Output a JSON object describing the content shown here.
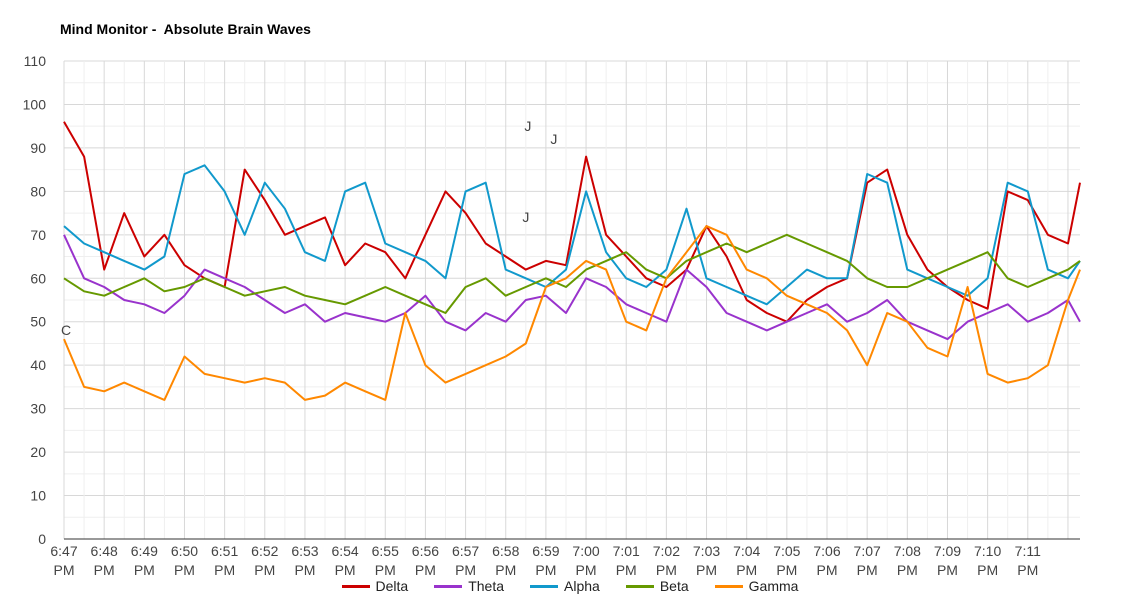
{
  "chart_data": {
    "type": "line",
    "title": "Mind Monitor -  Absolute Brain Waves",
    "ylim": [
      0,
      110
    ],
    "y_ticks": [
      0,
      10,
      20,
      30,
      40,
      50,
      60,
      70,
      80,
      90,
      100,
      110
    ],
    "x_ticks": [
      "6:47 PM",
      "6:48 PM",
      "6:49 PM",
      "6:50 PM",
      "6:51 PM",
      "6:52 PM",
      "6:53 PM",
      "6:54 PM",
      "6:55 PM",
      "6:56 PM",
      "6:57 PM",
      "6:58 PM",
      "6:59 PM",
      "7:00 PM",
      "7:01 PM",
      "7:02 PM",
      "7:03 PM",
      "7:04 PM",
      "7:05 PM",
      "7:06 PM",
      "7:07 PM",
      "7:08 PM",
      "7:09 PM",
      "7:10 PM",
      "7:11 PM"
    ],
    "x_range_minutes": [
      0,
      25.3
    ],
    "grid": true,
    "legend_position": "bottom",
    "series": [
      {
        "name": "Delta",
        "color": "#cc0000",
        "x": [
          0,
          0.5,
          1,
          1.5,
          2,
          2.5,
          3,
          3.5,
          4,
          4.5,
          5,
          5.5,
          6,
          6.5,
          7,
          7.5,
          8,
          8.5,
          9,
          9.5,
          10,
          10.5,
          11,
          11.5,
          12,
          12.5,
          13,
          13.5,
          14,
          14.5,
          15,
          15.5,
          16,
          16.5,
          17,
          17.5,
          18,
          18.5,
          19,
          19.5,
          20,
          20.5,
          21,
          21.5,
          22,
          22.5,
          23,
          23.5,
          24,
          24.5,
          25,
          25.3
        ],
        "values": [
          96,
          88,
          62,
          75,
          65,
          70,
          63,
          60,
          58,
          85,
          78,
          70,
          72,
          74,
          63,
          68,
          66,
          60,
          70,
          80,
          75,
          68,
          65,
          62,
          64,
          63,
          88,
          70,
          65,
          60,
          58,
          62,
          72,
          65,
          55,
          52,
          50,
          55,
          58,
          60,
          82,
          85,
          70,
          62,
          58,
          55,
          53,
          80,
          78,
          70,
          68,
          82
        ]
      },
      {
        "name": "Theta",
        "color": "#9933cc",
        "x": [
          0,
          0.5,
          1,
          1.5,
          2,
          2.5,
          3,
          3.5,
          4,
          4.5,
          5,
          5.5,
          6,
          6.5,
          7,
          7.5,
          8,
          8.5,
          9,
          9.5,
          10,
          10.5,
          11,
          11.5,
          12,
          12.5,
          13,
          13.5,
          14,
          14.5,
          15,
          15.5,
          16,
          16.5,
          17,
          17.5,
          18,
          18.5,
          19,
          19.5,
          20,
          20.5,
          21,
          21.5,
          22,
          22.5,
          23,
          23.5,
          24,
          24.5,
          25,
          25.3
        ],
        "values": [
          70,
          60,
          58,
          55,
          54,
          52,
          56,
          62,
          60,
          58,
          55,
          52,
          54,
          50,
          52,
          51,
          50,
          52,
          56,
          50,
          48,
          52,
          50,
          55,
          56,
          52,
          60,
          58,
          54,
          52,
          50,
          62,
          58,
          52,
          50,
          48,
          50,
          52,
          54,
          50,
          52,
          55,
          50,
          48,
          46,
          50,
          52,
          54,
          50,
          52,
          55,
          50
        ]
      },
      {
        "name": "Alpha",
        "color": "#1199cc",
        "x": [
          0,
          0.5,
          1,
          1.5,
          2,
          2.5,
          3,
          3.5,
          4,
          4.5,
          5,
          5.5,
          6,
          6.5,
          7,
          7.5,
          8,
          8.5,
          9,
          9.5,
          10,
          10.5,
          11,
          11.5,
          12,
          12.5,
          13,
          13.5,
          14,
          14.5,
          15,
          15.5,
          16,
          16.5,
          17,
          17.5,
          18,
          18.5,
          19,
          19.5,
          20,
          20.5,
          21,
          21.5,
          22,
          22.5,
          23,
          23.5,
          24,
          24.5,
          25,
          25.3
        ],
        "values": [
          72,
          68,
          66,
          64,
          62,
          65,
          84,
          86,
          80,
          70,
          82,
          76,
          66,
          64,
          80,
          82,
          68,
          66,
          64,
          60,
          80,
          82,
          62,
          60,
          58,
          62,
          80,
          66,
          60,
          58,
          62,
          76,
          60,
          58,
          56,
          54,
          58,
          62,
          60,
          60,
          84,
          82,
          62,
          60,
          58,
          56,
          60,
          82,
          80,
          62,
          60,
          64
        ]
      },
      {
        "name": "Beta",
        "color": "#669900",
        "x": [
          0,
          0.5,
          1,
          1.5,
          2,
          2.5,
          3,
          3.5,
          4,
          4.5,
          5,
          5.5,
          6,
          6.5,
          7,
          7.5,
          8,
          8.5,
          9,
          9.5,
          10,
          10.5,
          11,
          11.5,
          12,
          12.5,
          13,
          13.5,
          14,
          14.5,
          15,
          15.5,
          16,
          16.5,
          17,
          17.5,
          18,
          18.5,
          19,
          19.5,
          20,
          20.5,
          21,
          21.5,
          22,
          22.5,
          23,
          23.5,
          24,
          24.5,
          25,
          25.3
        ],
        "values": [
          60,
          57,
          56,
          58,
          60,
          57,
          58,
          60,
          58,
          56,
          57,
          58,
          56,
          55,
          54,
          56,
          58,
          56,
          54,
          52,
          58,
          60,
          56,
          58,
          60,
          58,
          62,
          64,
          66,
          62,
          60,
          64,
          66,
          68,
          66,
          68,
          70,
          68,
          66,
          64,
          60,
          58,
          58,
          60,
          62,
          64,
          66,
          60,
          58,
          60,
          62,
          64
        ]
      },
      {
        "name": "Gamma",
        "color": "#ff8800",
        "x": [
          0,
          0.5,
          1,
          1.5,
          2,
          2.5,
          3,
          3.5,
          4,
          4.5,
          5,
          5.5,
          6,
          6.5,
          7,
          7.5,
          8,
          8.5,
          9,
          9.5,
          10,
          10.5,
          11,
          11.5,
          12,
          12.5,
          13,
          13.5,
          14,
          14.5,
          15,
          15.5,
          16,
          16.5,
          17,
          17.5,
          18,
          18.5,
          19,
          19.5,
          20,
          20.5,
          21,
          21.5,
          22,
          22.5,
          23,
          23.5,
          24,
          24.5,
          25,
          25.3
        ],
        "values": [
          46,
          35,
          34,
          36,
          34,
          32,
          42,
          38,
          37,
          36,
          37,
          36,
          32,
          33,
          36,
          34,
          32,
          52,
          40,
          36,
          38,
          40,
          42,
          45,
          58,
          60,
          64,
          62,
          50,
          48,
          60,
          66,
          72,
          70,
          62,
          60,
          56,
          54,
          52,
          48,
          40,
          52,
          50,
          44,
          42,
          58,
          38,
          36,
          37,
          40,
          55,
          62
        ]
      }
    ],
    "annotations": [
      {
        "series": "Delta",
        "x": 0.05,
        "y": 46,
        "label": "C"
      },
      {
        "series": "Delta",
        "x": 11.55,
        "y": 93,
        "label": "J"
      },
      {
        "series": "Alpha",
        "x": 11.5,
        "y": 72,
        "label": "J"
      },
      {
        "series": "Gamma",
        "x": 12.2,
        "y": 90,
        "label": "J"
      }
    ]
  }
}
